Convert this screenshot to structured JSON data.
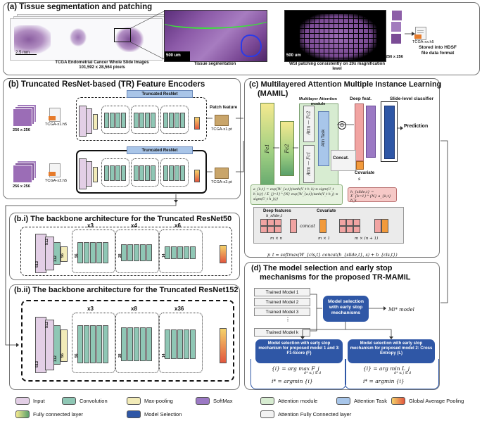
{
  "panel_a": {
    "title": "(a) Tissue segmentation and patching",
    "scale_left": "2.5 mm",
    "scale_mid": "500 um",
    "scale_right": "500 um",
    "caption_wsi": "TCGA Endometrial Cancer Whole Slide Images",
    "caption_pixels": "101,592 x 28,564 pixels",
    "caption_seg": "Tissue segmentation",
    "caption_patching": "WSI patching consistently on 20x magnification level",
    "patch_size": "256 x 256",
    "file_name": "TCGA-xx.h5",
    "stored_caption": "Stored into HDSF file data format"
  },
  "panel_b": {
    "title": "(b)  Truncated ResNet-based (TR) Feature Encoders",
    "patch_size_1": "256 x 256",
    "patch_size_2": "256 x 256",
    "h5_1": "TCGA-x1.h5",
    "h5_2": "TCGA-x2.h5",
    "truncated_label_1": "Truncated ResNet",
    "truncated_label_2": "Truncated ResNet",
    "patch_feature": "Patch feature",
    "pt_1": "TCGA-x1.pt",
    "pt_2": "TCGA-x2.pt"
  },
  "panel_bi": {
    "title": "(b.i) The backbone architecture for the Truncated ResNet50",
    "dims": [
      "512",
      "512",
      "112",
      "56",
      "56",
      "28",
      "14"
    ],
    "repeats": [
      "x3",
      "x4",
      "x6"
    ]
  },
  "panel_bii": {
    "title": "(b.ii) The backbone architecture for the Truncated ResNet152",
    "dims": [
      "512",
      "512",
      "112",
      "56",
      "56",
      "28",
      "14"
    ],
    "repeats": [
      "x3",
      "x8",
      "x36"
    ]
  },
  "panel_c": {
    "title_line1": "(c) Multilayered Attention Multiple Instance Learning",
    "title_line2": "(MAMIL)",
    "fc1": "Fc1",
    "fc2": "Fc2",
    "attn_module": "Multilayer Attention module",
    "attn_fc1": "Attn — Fc1",
    "attn_fc2": "Attn — Fc2",
    "attn_task": "Attn Task",
    "deep_feat": "Deep feat.",
    "slide_classifier": "Slide-level classifier",
    "prediction": "Prediction",
    "concat": "Concat.",
    "covariate": "Covariate",
    "covariate_sym": "s",
    "eq_a": "a_{k,t} = exp{W_{a,t}(tanh(V_t h_k) ⊙ sigm(U_t h_k))} / Σ_{j=1}^{N} exp{W_{a,t}(tanh(V_t h_j) ⊙ sigm(U_t h_j))}",
    "eq_h": "h_{slide,t} = Σ_{k=1}^{N} a_{k,t} h_k",
    "deep_features_label": "Deep features",
    "h_slide": "h_slide,t",
    "covariate_label": "Covariate",
    "concat_word": "concat",
    "dim1": "m × n",
    "dim2": "m × 1",
    "dim3": "m × (n + 1)",
    "eq_p": "p_t = softmax(W_{cls,t} concat(h_{slide,t}, s) + b_{cls,t})"
  },
  "panel_d": {
    "title_line1": "(d) The model selection and early stop",
    "title_line2": "mechanisms for the proposed TR-MAMIL",
    "models": [
      "Trained Model 1",
      "Trained Model 2",
      "Trained Model 3",
      "Trained Model k"
    ],
    "selection_box": "Model selection with early stop mechanisms",
    "mi_model": "Mi* model",
    "left_box": "Model selection with early stop mechanism for proposed model 1 and 3: F1-Score (F)",
    "right_box": "Model selection with early stop mechanism for proposed model 2: Cross Entropy (L)",
    "left_eq1": "{i} = arg max F_j",
    "left_eq1_sub": "d* ≤ j ≤ d",
    "left_eq2": "i* = argmin {i}",
    "right_eq1": "{i} = arg min L_j",
    "right_eq1_sub": "d* ≤ j ≤ d",
    "right_eq2": "i* = argmin {i}"
  },
  "legend": [
    {
      "label": "Input",
      "color": "#e3cfe6"
    },
    {
      "label": "Convolution",
      "color": "#8fc7b5"
    },
    {
      "label": "Max-pooling",
      "color": "#f2ebb8"
    },
    {
      "label": "SoftMax",
      "color": "#9b79c4"
    },
    {
      "label": "Attention module",
      "color": "#d7ecd1"
    },
    {
      "label": "Attention Task",
      "color": "#a8c6ea"
    },
    {
      "label": "Global Average Pooling",
      "color": "#e9806a"
    },
    {
      "label": "Fully connected layer",
      "color": "#b7d98b"
    },
    {
      "label": "Model Selection",
      "color": "#2f57a6"
    },
    {
      "label": "Attention Fully Connected layer",
      "color": "#f2f2f2"
    }
  ]
}
